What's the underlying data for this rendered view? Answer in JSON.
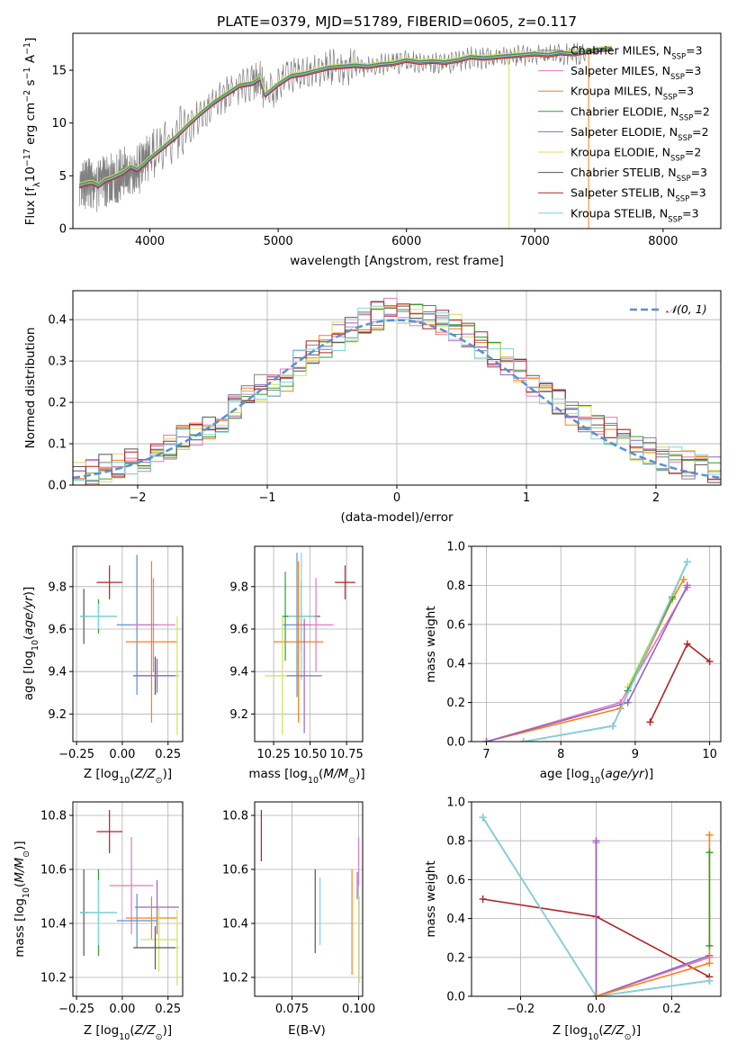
{
  "figure_title": "PLATE=0379, MJD=51789, FIBERID=0605, z=0.117",
  "colors": {
    "chabrier_miles": "#808080",
    "salpeter_miles": "#e377c2",
    "kroupa_miles": "#ff7f0e",
    "chabrier_elodie": "#2ca02c",
    "salpeter_elodie": "#9467bd",
    "kroupa_elodie": "#d4e157",
    "chabrier_stelib": "#555555",
    "salpeter_stelib": "#b22222",
    "kroupa_stelib": "#7fd4e0",
    "normal": "#5b8fd6"
  },
  "chart_data": [
    {
      "id": "spectrum",
      "type": "line",
      "title": "PLATE=0379, MJD=51789, FIBERID=0605, z=0.117",
      "xlabel": "wavelength [Angstrom, rest frame]",
      "ylabel": "Flux [f_λ10^-17 erg cm^-2 s^-1 A^-1]",
      "xlim": [
        3400,
        8450
      ],
      "ylim": [
        0,
        18.5
      ],
      "xticks": [
        4000,
        5000,
        6000,
        7000,
        8000
      ],
      "yticks": [
        0,
        5,
        10,
        15
      ],
      "grid": false,
      "legend_position": "right",
      "data_spectrum": {
        "name": "data",
        "x": [
          3450,
          3500,
          3550,
          3600,
          3650,
          3700,
          3750,
          3800,
          3850,
          3900,
          3950,
          4000,
          4100,
          4200,
          4300,
          4400,
          4500,
          4600,
          4700,
          4800,
          4860,
          4900,
          5000,
          5100,
          5200,
          5300,
          5400,
          5500,
          5600,
          5700,
          5800,
          5900,
          6000,
          6100,
          6200,
          6300,
          6400,
          6500,
          6600,
          6700,
          6800,
          6900,
          7000,
          7100,
          7200,
          7300,
          7400
        ],
        "y": [
          4.0,
          4.2,
          4.3,
          4.0,
          4.5,
          4.7,
          5.0,
          5.3,
          5.8,
          5.5,
          6.0,
          6.6,
          7.6,
          8.6,
          9.8,
          10.9,
          11.9,
          12.7,
          13.5,
          13.7,
          14.2,
          12.6,
          13.6,
          14.4,
          14.6,
          14.9,
          15.2,
          15.3,
          15.4,
          15.3,
          15.5,
          15.6,
          15.9,
          15.7,
          15.8,
          15.7,
          15.9,
          16.2,
          16.1,
          16.2,
          16.3,
          16.4,
          16.5,
          16.4,
          16.6,
          16.5,
          16.7
        ]
      },
      "model_spectrum": {
        "x": [
          3450,
          3500,
          3550,
          3600,
          3650,
          3700,
          3750,
          3800,
          3850,
          3900,
          3950,
          4000,
          4100,
          4200,
          4300,
          4400,
          4500,
          4600,
          4700,
          4800,
          4860,
          4900,
          5000,
          5100,
          5200,
          5300,
          5400,
          5500,
          5600,
          5700,
          5800,
          5900,
          6000,
          6100,
          6200,
          6300,
          6400,
          6500,
          6600,
          6700,
          6800,
          6900,
          7000,
          7100,
          7200,
          7300,
          7400,
          7500,
          7600
        ],
        "y": [
          4.0,
          4.2,
          4.3,
          4.0,
          4.5,
          4.7,
          5.0,
          5.3,
          5.8,
          5.5,
          6.0,
          6.6,
          7.6,
          8.6,
          9.8,
          10.9,
          11.9,
          12.7,
          13.5,
          13.7,
          14.2,
          12.6,
          13.6,
          14.4,
          14.6,
          14.9,
          15.2,
          15.3,
          15.4,
          15.3,
          15.5,
          15.6,
          15.9,
          15.7,
          15.8,
          15.7,
          15.9,
          16.2,
          16.1,
          16.2,
          16.3,
          16.4,
          16.5,
          16.4,
          16.6,
          16.5,
          16.7,
          16.9,
          17.0
        ]
      },
      "series": [
        {
          "name": "Chabrier MILES, N_SSP=3",
          "label_main": "Chabrier MILES, N",
          "label_sub": "SSP",
          "label_tail": "=3",
          "color_key": "chabrier_miles"
        },
        {
          "name": "Salpeter MILES, N_SSP=3",
          "label_main": "Salpeter MILES, N",
          "label_sub": "SSP",
          "label_tail": "=3",
          "color_key": "salpeter_miles"
        },
        {
          "name": "Kroupa MILES, N_SSP=3",
          "label_main": "Kroupa MILES, N",
          "label_sub": "SSP",
          "label_tail": "=3",
          "color_key": "kroupa_miles"
        },
        {
          "name": "Chabrier ELODIE, N_SSP=2",
          "label_main": "Chabrier ELODIE, N",
          "label_sub": "SSP",
          "label_tail": "=2",
          "color_key": "chabrier_elodie"
        },
        {
          "name": "Salpeter ELODIE, N_SSP=2",
          "label_main": "Salpeter ELODIE, N",
          "label_sub": "SSP",
          "label_tail": "=2",
          "color_key": "salpeter_elodie"
        },
        {
          "name": "Kroupa ELODIE, N_SSP=2",
          "label_main": "Kroupa ELODIE, N",
          "label_sub": "SSP",
          "label_tail": "=2",
          "color_key": "kroupa_elodie"
        },
        {
          "name": "Chabrier STELIB, N_SSP=3",
          "label_main": "Chabrier STELIB, N",
          "label_sub": "SSP",
          "label_tail": "=3",
          "color_key": "chabrier_stelib"
        },
        {
          "name": "Salpeter STELIB, N_SSP=3",
          "label_main": "Salpeter STELIB, N",
          "label_sub": "SSP",
          "label_tail": "=3",
          "color_key": "salpeter_stelib"
        },
        {
          "name": "Kroupa STELIB, N_SSP=3",
          "label_main": "Kroupa STELIB, N",
          "label_sub": "SSP",
          "label_tail": "=3",
          "color_key": "kroupa_stelib"
        }
      ]
    },
    {
      "id": "residuals",
      "type": "line",
      "xlabel": "(data-model)/error",
      "ylabel": "Normed distribution",
      "xlim": [
        -2.5,
        2.5
      ],
      "ylim": [
        0,
        0.47
      ],
      "xticks": [
        -2,
        -1,
        0,
        1,
        2
      ],
      "yticks": [
        0.0,
        0.1,
        0.2,
        0.3,
        0.4
      ],
      "grid": true,
      "legend_position": "top-right",
      "normal_label": "𝒩(0, 1)",
      "bin_edges": [
        -2.5,
        -2.4,
        -2.3,
        -2.2,
        -2.1,
        -2.0,
        -1.9,
        -1.8,
        -1.7,
        -1.6,
        -1.5,
        -1.4,
        -1.3,
        -1.2,
        -1.1,
        -1.0,
        -0.9,
        -0.8,
        -0.7,
        -0.6,
        -0.5,
        -0.4,
        -0.3,
        -0.2,
        -0.1,
        0.0,
        0.1,
        0.2,
        0.3,
        0.4,
        0.5,
        0.6,
        0.7,
        0.8,
        0.9,
        1.0,
        1.1,
        1.2,
        1.3,
        1.4,
        1.5,
        1.6,
        1.7,
        1.8,
        1.9,
        2.0,
        2.1,
        2.2,
        2.3,
        2.4,
        2.5
      ],
      "hist_base": [
        0.03,
        0.035,
        0.04,
        0.05,
        0.055,
        0.065,
        0.08,
        0.095,
        0.11,
        0.125,
        0.14,
        0.16,
        0.19,
        0.215,
        0.235,
        0.25,
        0.26,
        0.3,
        0.32,
        0.34,
        0.36,
        0.38,
        0.4,
        0.41,
        0.43,
        0.42,
        0.41,
        0.4,
        0.39,
        0.38,
        0.36,
        0.34,
        0.32,
        0.3,
        0.27,
        0.25,
        0.22,
        0.2,
        0.18,
        0.16,
        0.14,
        0.13,
        0.11,
        0.095,
        0.08,
        0.07,
        0.06,
        0.05,
        0.04,
        0.035
      ]
    },
    {
      "id": "age_vs_Z",
      "type": "scatter",
      "xlabel": "Z [log10(Z/Z⊙)]",
      "ylabel": "age [log10(age/yr)]",
      "xlim": [
        -0.27,
        0.33
      ],
      "ylim": [
        9.07,
        9.99
      ],
      "xticks": [
        -0.25,
        0.0,
        0.25
      ],
      "yticks": [
        9.2,
        9.4,
        9.6,
        9.8
      ],
      "grid": true,
      "errorbars": [
        {
          "c": "salpeter_stelib",
          "x": -0.07,
          "y": 9.82,
          "xe": 0.07,
          "ye": 0.08
        },
        {
          "c": "chabrier_stelib",
          "x": -0.21,
          "y": 9.66,
          "xe": 0.02,
          "ye": 0.13
        },
        {
          "c": "chabrier_elodie",
          "x": -0.13,
          "y": 9.66,
          "xe": 0.1,
          "ye": 0.08
        },
        {
          "c": "kroupa_stelib",
          "x": -0.13,
          "y": 9.66,
          "xe": 0.1,
          "ye": 0.06
        },
        {
          "c": "normal",
          "x": 0.08,
          "y": 9.62,
          "xe": 0.11,
          "ye": 0.33
        },
        {
          "c": "salpeter_miles",
          "x": 0.17,
          "y": 9.62,
          "xe": 0.12,
          "ye": 0.22
        },
        {
          "c": "kroupa_miles",
          "x": 0.16,
          "y": 9.54,
          "xe": 0.14,
          "ye": 0.38
        },
        {
          "c": "chabrier_stelib",
          "x": 0.18,
          "y": 9.38,
          "xe": 0.12,
          "ye": 0.09
        },
        {
          "c": "salpeter_elodie",
          "x": 0.19,
          "y": 9.38,
          "xe": 0.12,
          "ye": 0.08
        },
        {
          "c": "kroupa_elodie",
          "x": 0.3,
          "y": 9.38,
          "xe": 0.01,
          "ye": 0.28
        }
      ]
    },
    {
      "id": "age_vs_mass",
      "type": "scatter",
      "xlabel": "mass [log10(M/M⊙)]",
      "ylabel": "",
      "xlim": [
        10.12,
        10.86
      ],
      "ylim": [
        9.07,
        9.99
      ],
      "xticks": [
        10.25,
        10.5,
        10.75
      ],
      "yticks": [
        9.2,
        9.4,
        9.6,
        9.8
      ],
      "grid": true,
      "errorbars": [
        {
          "c": "salpeter_stelib",
          "x": 10.74,
          "y": 9.82,
          "xe": 0.07,
          "ye": 0.08
        },
        {
          "c": "chabrier_stelib",
          "x": 10.44,
          "y": 9.66,
          "xe": 0.13,
          "ye": 0.17
        },
        {
          "c": "kroupa_stelib",
          "x": 10.44,
          "y": 9.66,
          "xe": 0.09,
          "ye": 0.3
        },
        {
          "c": "chabrier_elodie",
          "x": 10.33,
          "y": 9.66,
          "xe": 0.02,
          "ye": 0.21
        },
        {
          "c": "normal",
          "x": 10.41,
          "y": 9.62,
          "xe": 0.1,
          "ye": 0.34
        },
        {
          "c": "salpeter_miles",
          "x": 10.54,
          "y": 9.62,
          "xe": 0.12,
          "ye": 0.22
        },
        {
          "c": "kroupa_miles",
          "x": 10.42,
          "y": 9.54,
          "xe": 0.17,
          "ye": 0.38
        },
        {
          "c": "kroupa_elodie",
          "x": 10.31,
          "y": 9.38,
          "xe": 0.12,
          "ye": 0.28
        },
        {
          "c": "salpeter_elodie",
          "x": 10.46,
          "y": 9.38,
          "xe": 0.12,
          "ye": 0.27
        }
      ]
    },
    {
      "id": "weight_vs_age",
      "type": "line",
      "xlabel": "age [log10(age/yr)]",
      "ylabel": "mass weight",
      "xlim": [
        6.8,
        10.15
      ],
      "ylim": [
        0,
        1.0
      ],
      "xticks": [
        7,
        8,
        9,
        10
      ],
      "yticks": [
        0.0,
        0.2,
        0.4,
        0.6,
        0.8,
        1.0
      ],
      "grid": true,
      "series": [
        {
          "c": "kroupa_miles",
          "x": [
            7.0,
            8.8,
            9.5,
            9.65
          ],
          "y": [
            0.0,
            0.17,
            0.73,
            0.83
          ]
        },
        {
          "c": "salpeter_miles",
          "x": [
            7.0,
            8.8,
            9.7
          ],
          "y": [
            0.0,
            0.2,
            0.79
          ]
        },
        {
          "c": "salpeter_elodie",
          "x": [
            7.0,
            8.9,
            9.7
          ],
          "y": [
            0.0,
            0.2,
            0.8
          ]
        },
        {
          "c": "kroupa_elodie",
          "x": [
            8.9,
            9.5,
            9.7
          ],
          "y": [
            0.28,
            0.74,
            0.92
          ]
        },
        {
          "c": "chabrier_stelib",
          "x": [
            7.5,
            8.7,
            9.7
          ],
          "y": [
            0.0,
            0.08,
            0.92
          ]
        },
        {
          "c": "chabrier_elodie",
          "x": [
            8.9,
            9.5
          ],
          "y": [
            0.26,
            0.74
          ]
        },
        {
          "c": "kroupa_stelib",
          "x": [
            7.5,
            8.7,
            9.7
          ],
          "y": [
            0.0,
            0.08,
            0.92
          ]
        },
        {
          "c": "salpeter_stelib",
          "x": [
            9.2,
            9.7,
            10.0
          ],
          "y": [
            0.1,
            0.5,
            0.41
          ]
        }
      ]
    },
    {
      "id": "mass_vs_Z",
      "type": "scatter",
      "xlabel": "Z [log10(Z/Z⊙)]",
      "ylabel": "mass [log10(M/M⊙)]",
      "xlim": [
        -0.27,
        0.33
      ],
      "ylim": [
        10.13,
        10.85
      ],
      "xticks": [
        -0.25,
        0.0,
        0.25
      ],
      "yticks": [
        10.2,
        10.4,
        10.6,
        10.8
      ],
      "grid": true,
      "errorbars": [
        {
          "c": "salpeter_stelib",
          "x": -0.07,
          "y": 10.74,
          "xe": 0.07,
          "ye": 0.08
        },
        {
          "c": "salpeter_miles",
          "x": 0.05,
          "y": 10.54,
          "xe": 0.12,
          "ye": 0.18
        },
        {
          "c": "chabrier_stelib",
          "x": -0.21,
          "y": 10.44,
          "xe": 0.02,
          "ye": 0.16
        },
        {
          "c": "chabrier_elodie",
          "x": -0.13,
          "y": 10.44,
          "xe": 0.1,
          "ye": 0.16
        },
        {
          "c": "kroupa_stelib",
          "x": -0.13,
          "y": 10.44,
          "xe": 0.1,
          "ye": 0.12
        },
        {
          "c": "salpeter_elodie",
          "x": 0.19,
          "y": 10.46,
          "xe": 0.12,
          "ye": 0.1
        },
        {
          "c": "normal",
          "x": 0.08,
          "y": 10.41,
          "xe": 0.11,
          "ye": 0.1
        },
        {
          "c": "kroupa_miles",
          "x": 0.16,
          "y": 10.42,
          "xe": 0.14,
          "ye": 0.08
        },
        {
          "c": "kroupa_elodie",
          "x": 0.2,
          "y": 10.34,
          "xe": 0.1,
          "ye": 0.12
        },
        {
          "c": "chabrier_stelib",
          "x": 0.18,
          "y": 10.31,
          "xe": 0.12,
          "ye": 0.08
        },
        {
          "c": "kroupa_elodie",
          "x": 0.3,
          "y": 10.31,
          "xe": 0.01,
          "ye": 0.14
        }
      ]
    },
    {
      "id": "mass_vs_ebv",
      "type": "scatter",
      "xlabel": "E(B-V)",
      "ylabel": "",
      "xlim": [
        0.061,
        0.1015
      ],
      "ylim": [
        10.13,
        10.85
      ],
      "xticks": [
        0.075,
        0.1
      ],
      "xticklabels": [
        "0.075",
        "0.100"
      ],
      "yticks": [
        10.2,
        10.4,
        10.6,
        10.8
      ],
      "grid": true,
      "vbars": [
        {
          "c": "salpeter_stelib",
          "x": 0.0635,
          "y0": 10.63,
          "y1": 10.82
        },
        {
          "c": "chabrier_stelib",
          "x": 0.0837,
          "y0": 10.29,
          "y1": 10.6
        },
        {
          "c": "kroupa_stelib",
          "x": 0.0855,
          "y0": 10.32,
          "y1": 10.57
        },
        {
          "c": "kroupa_miles",
          "x": 0.0975,
          "y0": 10.21,
          "y1": 10.6
        },
        {
          "c": "salpeter_elodie",
          "x": 0.0995,
          "y0": 10.49,
          "y1": 10.59
        },
        {
          "c": "salpeter_miles",
          "x": 0.1,
          "y0": 10.54,
          "y1": 10.72
        },
        {
          "c": "kroupa_elodie",
          "x": 0.1002,
          "y0": 10.18,
          "y1": 10.5
        }
      ]
    },
    {
      "id": "weight_vs_Z",
      "type": "line",
      "xlabel": "Z [log10(Z/Z⊙)]",
      "ylabel": "mass weight",
      "xlim": [
        -0.33,
        0.33
      ],
      "ylim": [
        0,
        1.0
      ],
      "xticks": [
        -0.2,
        0.0,
        0.2
      ],
      "yticks": [
        0.0,
        0.2,
        0.4,
        0.6,
        0.8,
        1.0
      ],
      "grid": true,
      "series": [
        {
          "c": "salpeter_stelib",
          "x": [
            -0.3,
            0.0,
            0.3
          ],
          "y": [
            0.5,
            0.41,
            0.1
          ]
        },
        {
          "c": "chabrier_stelib",
          "x": [
            -0.3,
            0.0,
            0.3
          ],
          "y": [
            0.92,
            0.0,
            0.08
          ]
        },
        {
          "c": "kroupa_stelib",
          "x": [
            -0.3,
            0.0,
            0.3
          ],
          "y": [
            0.92,
            0.0,
            0.08
          ]
        },
        {
          "c": "salpeter_miles",
          "x": [
            0.0,
            0.0,
            0.3
          ],
          "y": [
            0.79,
            0.0,
            0.2
          ]
        },
        {
          "c": "salpeter_elodie",
          "x": [
            0.0,
            0.0,
            0.3
          ],
          "y": [
            0.8,
            0.0,
            0.21
          ]
        },
        {
          "c": "kroupa_miles",
          "x": [
            0.0,
            0.3,
            0.3
          ],
          "y": [
            0.0,
            0.17,
            0.83
          ]
        },
        {
          "c": "kroupa_elodie",
          "x": [
            0.3,
            0.3
          ],
          "y": [
            0.26,
            0.74
          ]
        },
        {
          "c": "chabrier_elodie",
          "x": [
            0.3,
            0.3
          ],
          "y": [
            0.26,
            0.74
          ]
        }
      ]
    }
  ]
}
